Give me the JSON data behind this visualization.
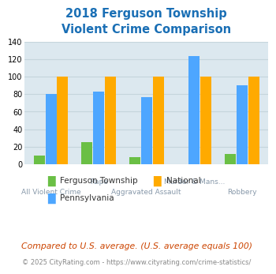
{
  "title": "2018 Ferguson Township\nViolent Crime Comparison",
  "categories": [
    "All Violent Crime",
    "Rape",
    "Aggravated Assault",
    "Murder & Mans...",
    "Robbery"
  ],
  "x_labels_row1": [
    "",
    "Rape",
    "",
    "Murder & Mans...",
    ""
  ],
  "x_labels_row2": [
    "All Violent Crime",
    "",
    "Aggravated Assault",
    "",
    "Robbery"
  ],
  "ferguson": [
    10,
    25,
    8,
    0,
    12
  ],
  "pennsylvania": [
    80,
    83,
    77,
    124,
    90
  ],
  "national": [
    100,
    100,
    100,
    100,
    100
  ],
  "color_ferguson": "#6abf45",
  "color_pennsylvania": "#4da6ff",
  "color_national": "#ffaa00",
  "ylim": [
    0,
    140
  ],
  "yticks": [
    0,
    20,
    40,
    60,
    80,
    100,
    120,
    140
  ],
  "title_color": "#1a6fb5",
  "title_fontsize": 10.5,
  "bg_color": "#dce8ef",
  "grid_color": "#c5d5dc",
  "footnote": "Compared to U.S. average. (U.S. average equals 100)",
  "footnote2": "© 2025 CityRating.com - https://www.cityrating.com/crime-statistics/",
  "footnote_color": "#cc4400",
  "footnote2_color": "#888888",
  "label_color": "#8899aa"
}
